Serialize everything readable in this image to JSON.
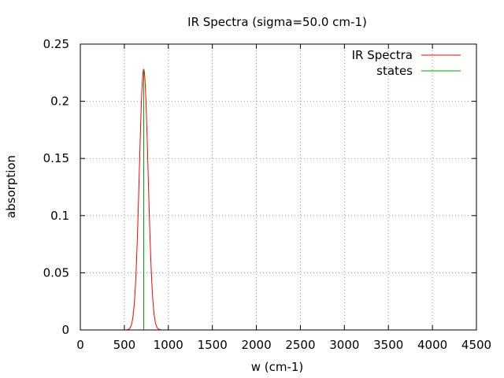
{
  "chart_data": {
    "type": "line",
    "title": "IR Spectra (sigma=50.0 cm-1)",
    "xlabel": "w (cm-1)",
    "ylabel": "absorption",
    "xlim": [
      0,
      4500
    ],
    "ylim": [
      0,
      0.25
    ],
    "x_ticks": [
      "0",
      "500",
      "1000",
      "1500",
      "2000",
      "2500",
      "3000",
      "3500",
      "4000",
      "4500"
    ],
    "y_ticks": [
      "0",
      "0.05",
      "0.1",
      "0.15",
      "0.2",
      "0.25"
    ],
    "grid": true,
    "legend_position": "top-right",
    "series": [
      {
        "name": "IR Spectra",
        "color": "#ff0000",
        "kind": "gaussian-curve",
        "center": 720,
        "peak": 0.228,
        "sigma": 50.0
      },
      {
        "name": "states",
        "color": "#00a000",
        "kind": "impulse",
        "x": [
          720
        ],
        "y": [
          0.228
        ]
      }
    ]
  }
}
